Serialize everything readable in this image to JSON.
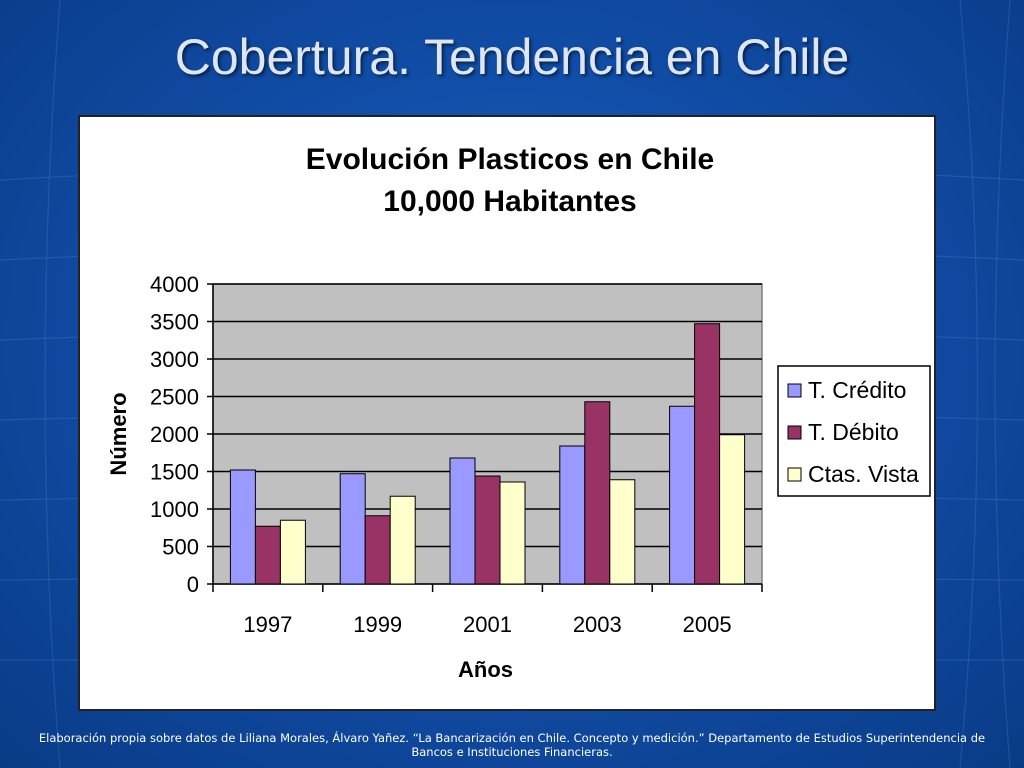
{
  "slide": {
    "title": "Cobertura. Tendencia en Chile",
    "footer": "Elaboración propia sobre datos de Liliana Morales, Álvaro Yañez. “La Bancarización en Chile. Concepto y medición.” Departamento de Estudios Superintendencia de Bancos e Instituciones Financieras."
  },
  "chart_data": {
    "type": "bar",
    "title": "Evolución Plasticos en Chile",
    "subtitle": "10,000 Habitantes",
    "xlabel": "Años",
    "ylabel": "Número",
    "categories": [
      "1997",
      "1999",
      "2001",
      "2003",
      "2005"
    ],
    "ylim": [
      0,
      4000
    ],
    "yticks": [
      0,
      500,
      1000,
      1500,
      2000,
      2500,
      3000,
      3500,
      4000
    ],
    "grid": true,
    "legend_position": "right",
    "series": [
      {
        "name": "T. Crédito",
        "color": "#9999ff",
        "values": [
          1520,
          1470,
          1680,
          1840,
          2370
        ]
      },
      {
        "name": "T. Débito",
        "color": "#993366",
        "values": [
          770,
          910,
          1440,
          2430,
          3470
        ]
      },
      {
        "name": "Ctas. Vista",
        "color": "#ffffcc",
        "values": [
          850,
          1170,
          1360,
          1390,
          1990
        ]
      }
    ],
    "plot_background": "#c0c0c0"
  }
}
